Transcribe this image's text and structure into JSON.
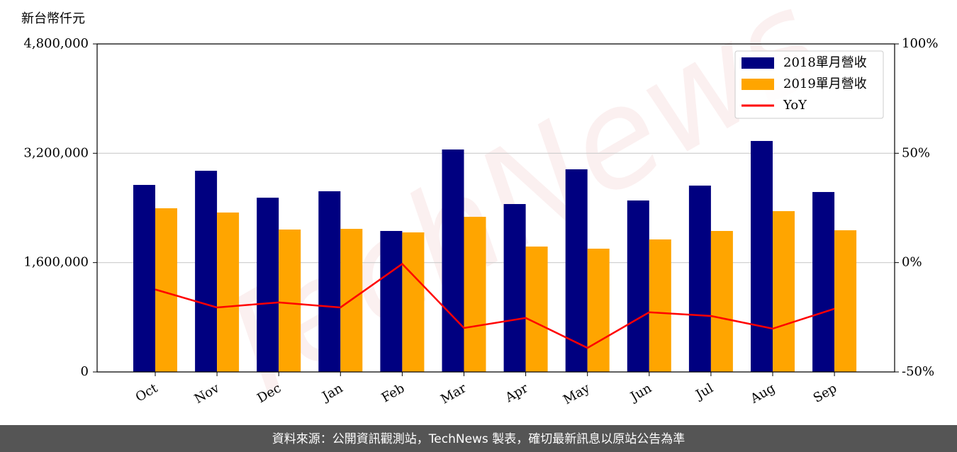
{
  "chart_data": {
    "type": "bar",
    "y_label": "新台幣仟元",
    "watermark": "TechNews",
    "footer": "資料來源：公開資訊觀測站，TechNews 製表，確切最新訊息以原站公告為準",
    "categories": [
      "Oct",
      "Nov",
      "Dec",
      "Jan",
      "Feb",
      "Mar",
      "Apr",
      "May",
      "Jun",
      "Jul",
      "Aug",
      "Sep"
    ],
    "series": [
      {
        "name": "2018單月營收",
        "color": "#000080",
        "type": "bar",
        "values": [
          2737000,
          2944000,
          2550000,
          2644000,
          2063000,
          3255000,
          2457000,
          2965000,
          2509000,
          2727000,
          3380000,
          2633000
        ]
      },
      {
        "name": "2019單月營收",
        "color": "#ffa500",
        "type": "bar",
        "values": [
          2395000,
          2333000,
          2084000,
          2094000,
          2042000,
          2270000,
          1835000,
          1804000,
          1939000,
          2063000,
          2353000,
          2073000
        ]
      },
      {
        "name": "YoY",
        "color": "#ff0000",
        "type": "line",
        "axis": "y2",
        "values": [
          -12.3,
          -20.5,
          -18.2,
          -20.5,
          -0.6,
          -29.9,
          -25.3,
          -39.0,
          -22.7,
          -24.4,
          -30.2,
          -21.1
        ]
      }
    ],
    "ylim": [
      0,
      4800000
    ],
    "yticks": [
      0,
      {
        "value": 1600000,
        "label": "1,600,000"
      },
      {
        "value": 3200000,
        "label": "3,200,000"
      },
      {
        "value": 4800000,
        "label": "4,800,000"
      }
    ],
    "y2lim": [
      -50,
      100
    ],
    "y2ticks": [
      {
        "value": -50,
        "label": "-50%"
      },
      {
        "value": 0,
        "label": "0%"
      },
      {
        "value": 50,
        "label": "50%"
      },
      {
        "value": 100,
        "label": "100%"
      }
    ],
    "grid": true,
    "legend": "upper right"
  }
}
